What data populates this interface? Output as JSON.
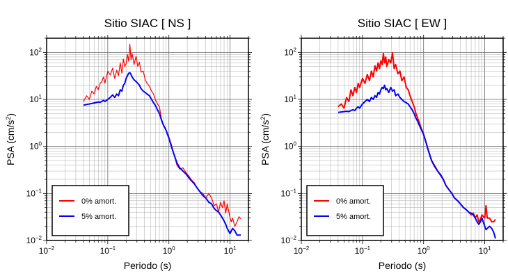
{
  "chart_data": [
    {
      "type": "line",
      "title": "Sitio SIAC [ NS ]",
      "xlabel": "Periodo (s)",
      "ylabel_main": "PSA (cm/s",
      "ylabel_sup": "2",
      "ylabel_tail": ")",
      "xscale": "log",
      "yscale": "log",
      "xlim": [
        0.01,
        20
      ],
      "ylim": [
        0.01,
        200
      ],
      "grid": true,
      "legend_position": "bottom-left",
      "x_ticks": [
        {
          "value": 0.01,
          "base": "10",
          "exp": "−2"
        },
        {
          "value": 0.1,
          "base": "10",
          "exp": "−1"
        },
        {
          "value": 1,
          "base": "10",
          "exp": "0"
        },
        {
          "value": 10,
          "base": "10",
          "exp": "1"
        }
      ],
      "y_ticks": [
        {
          "value": 0.01,
          "base": "10",
          "exp": "−2"
        },
        {
          "value": 0.1,
          "base": "10",
          "exp": "−1"
        },
        {
          "value": 1,
          "base": "10",
          "exp": "0"
        },
        {
          "value": 10,
          "base": "10",
          "exp": "1"
        },
        {
          "value": 100,
          "base": "10",
          "exp": "2"
        }
      ],
      "series": [
        {
          "name": "0% amort.",
          "color": "#ff0000",
          "width": 1.2,
          "x": [
            0.04,
            0.045,
            0.05,
            0.055,
            0.06,
            0.065,
            0.07,
            0.075,
            0.08,
            0.085,
            0.09,
            0.1,
            0.11,
            0.12,
            0.13,
            0.14,
            0.15,
            0.16,
            0.17,
            0.18,
            0.19,
            0.2,
            0.21,
            0.22,
            0.23,
            0.24,
            0.25,
            0.27,
            0.29,
            0.31,
            0.33,
            0.35,
            0.38,
            0.41,
            0.44,
            0.48,
            0.52,
            0.56,
            0.6,
            0.65,
            0.7,
            0.75,
            0.8,
            0.9,
            1.0,
            1.1,
            1.2,
            1.35,
            1.5,
            1.7,
            1.9,
            2.1,
            2.3,
            2.6,
            2.9,
            3.2,
            3.6,
            4.0,
            4.5,
            5.0,
            5.5,
            6.0,
            6.5,
            7.0,
            7.5,
            8.0,
            8.5,
            9.0,
            10.0,
            10.5,
            11.0,
            12.0,
            13.0,
            14.0,
            15.0
          ],
          "values": [
            9,
            12,
            10,
            15,
            13,
            19,
            16,
            22,
            24,
            30,
            22,
            40,
            33,
            46,
            28,
            42,
            32,
            60,
            36,
            72,
            50,
            58,
            90,
            65,
            150,
            70,
            95,
            55,
            82,
            50,
            62,
            38,
            40,
            26,
            22,
            19,
            15,
            13,
            10,
            8,
            7,
            4,
            3,
            2.2,
            1.6,
            1.1,
            0.7,
            0.4,
            0.33,
            0.35,
            0.28,
            0.24,
            0.2,
            0.17,
            0.13,
            0.11,
            0.1,
            0.08,
            0.1,
            0.08,
            0.055,
            0.06,
            0.04,
            0.065,
            0.05,
            0.07,
            0.038,
            0.06,
            0.03,
            0.025,
            0.03,
            0.02,
            0.025,
            0.032,
            0.029
          ]
        },
        {
          "name": "5% amort.",
          "color": "#0000ff",
          "width": 2,
          "x": [
            0.04,
            0.045,
            0.05,
            0.055,
            0.06,
            0.065,
            0.07,
            0.075,
            0.08,
            0.085,
            0.09,
            0.1,
            0.11,
            0.12,
            0.13,
            0.14,
            0.15,
            0.16,
            0.17,
            0.18,
            0.19,
            0.2,
            0.21,
            0.22,
            0.23,
            0.24,
            0.25,
            0.27,
            0.29,
            0.31,
            0.33,
            0.35,
            0.38,
            0.41,
            0.44,
            0.48,
            0.52,
            0.56,
            0.6,
            0.65,
            0.7,
            0.75,
            0.8,
            0.9,
            1.0,
            1.1,
            1.2,
            1.35,
            1.5,
            1.7,
            1.9,
            2.1,
            2.3,
            2.6,
            2.9,
            3.2,
            3.6,
            4.0,
            4.5,
            5.0,
            5.5,
            6.0,
            6.5,
            7.0,
            7.5,
            8.0,
            8.5,
            9.0,
            10.0,
            10.5,
            11.0,
            12.0,
            13.0,
            14.0,
            15.0
          ],
          "values": [
            7.5,
            7.8,
            8,
            8.2,
            8.4,
            8.6,
            8.8,
            8.7,
            9,
            9.5,
            9,
            10,
            11,
            12.5,
            11,
            13,
            12,
            16,
            15,
            20,
            22,
            28,
            32,
            36,
            37,
            34,
            30,
            26,
            24,
            22,
            20,
            17,
            15,
            14,
            13,
            12,
            10,
            8.5,
            7.5,
            6,
            5,
            3.8,
            3,
            2.2,
            1.5,
            1.0,
            0.7,
            0.45,
            0.35,
            0.3,
            0.26,
            0.22,
            0.19,
            0.16,
            0.13,
            0.11,
            0.09,
            0.08,
            0.065,
            0.06,
            0.048,
            0.043,
            0.04,
            0.035,
            0.03,
            0.026,
            0.022,
            0.018,
            0.014,
            0.016,
            0.018,
            0.016,
            0.013,
            0.013,
            0.013
          ]
        }
      ]
    },
    {
      "type": "line",
      "title": "Sitio SIAC [ EW ]",
      "xlabel": "Periodo (s)",
      "ylabel_main": "PSA (cm/s",
      "ylabel_sup": "2",
      "ylabel_tail": ")",
      "xscale": "log",
      "yscale": "log",
      "xlim": [
        0.01,
        20
      ],
      "ylim": [
        0.01,
        200
      ],
      "grid": true,
      "legend_position": "bottom-left",
      "x_ticks": [
        {
          "value": 0.01,
          "base": "10",
          "exp": "−2"
        },
        {
          "value": 0.1,
          "base": "10",
          "exp": "−1"
        },
        {
          "value": 1,
          "base": "10",
          "exp": "0"
        },
        {
          "value": 10,
          "base": "10",
          "exp": "1"
        }
      ],
      "y_ticks": [
        {
          "value": 0.01,
          "base": "10",
          "exp": "−2"
        },
        {
          "value": 0.1,
          "base": "10",
          "exp": "−1"
        },
        {
          "value": 1,
          "base": "10",
          "exp": "0"
        },
        {
          "value": 10,
          "base": "10",
          "exp": "1"
        },
        {
          "value": 100,
          "base": "10",
          "exp": "2"
        }
      ],
      "series": [
        {
          "name": "0% amort.",
          "color": "#ff0000",
          "width": 2,
          "x": [
            0.04,
            0.045,
            0.05,
            0.055,
            0.06,
            0.065,
            0.07,
            0.075,
            0.08,
            0.085,
            0.09,
            0.1,
            0.11,
            0.12,
            0.13,
            0.14,
            0.15,
            0.16,
            0.17,
            0.18,
            0.19,
            0.2,
            0.21,
            0.22,
            0.23,
            0.24,
            0.25,
            0.27,
            0.29,
            0.31,
            0.33,
            0.35,
            0.38,
            0.41,
            0.44,
            0.48,
            0.52,
            0.56,
            0.6,
            0.65,
            0.7,
            0.75,
            0.8,
            0.9,
            1.0,
            1.1,
            1.2,
            1.35,
            1.5,
            1.7,
            1.9,
            2.1,
            2.3,
            2.6,
            2.9,
            3.2,
            3.6,
            4.0,
            4.5,
            5.0,
            5.5,
            6.0,
            6.5,
            7.0,
            7.5,
            8.0,
            8.5,
            9.0,
            10.0,
            10.5,
            11.0,
            12.0,
            13.0,
            14.0,
            15.0
          ],
          "values": [
            7,
            8,
            6.5,
            11,
            9,
            16,
            12,
            18,
            14,
            22,
            18,
            28,
            22,
            34,
            25,
            40,
            30,
            52,
            40,
            60,
            45,
            66,
            55,
            95,
            60,
            80,
            50,
            70,
            60,
            98,
            45,
            55,
            35,
            40,
            25,
            30,
            18,
            16,
            12,
            9,
            7,
            5,
            4,
            2.6,
            1.8,
            1.2,
            0.8,
            0.5,
            0.4,
            0.3,
            0.24,
            0.2,
            0.15,
            0.12,
            0.1,
            0.08,
            0.07,
            0.06,
            0.05,
            0.045,
            0.04,
            0.035,
            0.038,
            0.03,
            0.035,
            0.025,
            0.028,
            0.035,
            0.03,
            0.055,
            0.03,
            0.03,
            0.025,
            0.025,
            0.028
          ]
        },
        {
          "name": "5% amort.",
          "color": "#0000ff",
          "width": 2,
          "x": [
            0.04,
            0.045,
            0.05,
            0.055,
            0.06,
            0.065,
            0.07,
            0.075,
            0.08,
            0.085,
            0.09,
            0.1,
            0.11,
            0.12,
            0.13,
            0.14,
            0.15,
            0.16,
            0.17,
            0.18,
            0.19,
            0.2,
            0.21,
            0.22,
            0.23,
            0.24,
            0.25,
            0.27,
            0.29,
            0.31,
            0.33,
            0.35,
            0.38,
            0.41,
            0.44,
            0.48,
            0.52,
            0.56,
            0.6,
            0.65,
            0.7,
            0.75,
            0.8,
            0.9,
            1.0,
            1.1,
            1.2,
            1.35,
            1.5,
            1.7,
            1.9,
            2.1,
            2.3,
            2.6,
            2.9,
            3.2,
            3.6,
            4.0,
            4.5,
            5.0,
            5.5,
            6.0,
            6.5,
            7.0,
            7.5,
            8.0,
            8.5,
            9.0,
            10.0,
            10.5,
            11.0,
            12.0,
            13.0,
            14.0,
            15.0
          ],
          "values": [
            5.3,
            5.4,
            5.5,
            5.6,
            5.5,
            5.8,
            6,
            5.8,
            6.5,
            7,
            6.5,
            8,
            9,
            10,
            9,
            11,
            10,
            12,
            11,
            14,
            13,
            16,
            18,
            17,
            20,
            16,
            17,
            14,
            18,
            15,
            16,
            12,
            13,
            11,
            10,
            9,
            8.5,
            8,
            7,
            6,
            5,
            4,
            3.4,
            2.4,
            1.8,
            1.2,
            0.8,
            0.5,
            0.38,
            0.3,
            0.25,
            0.2,
            0.15,
            0.12,
            0.1,
            0.08,
            0.07,
            0.06,
            0.05,
            0.045,
            0.04,
            0.038,
            0.035,
            0.03,
            0.025,
            0.022,
            0.025,
            0.03,
            0.02,
            0.017,
            0.018,
            0.02,
            0.018,
            0.015,
            0.011
          ]
        }
      ]
    }
  ]
}
